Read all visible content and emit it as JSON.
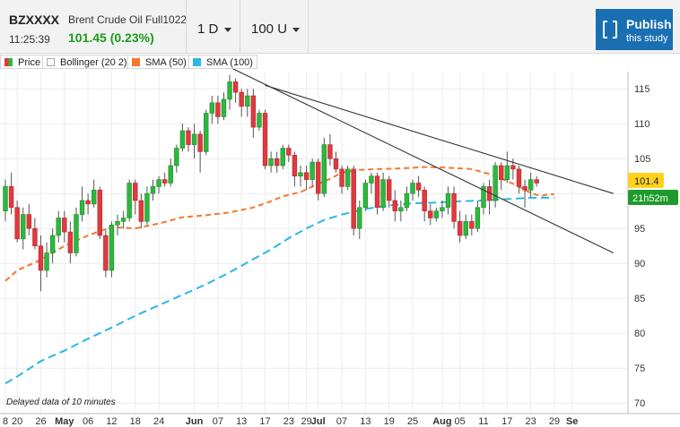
{
  "header": {
    "symbol": "BZXXXX",
    "name": "Brent Crude Oil Full1022",
    "time": "11:25:39",
    "price": "101.45 (0.23%)",
    "period": "1 D",
    "units": "100 U",
    "publish_label": "Publish",
    "publish_sub": "this study"
  },
  "legend": {
    "items": [
      {
        "label": "Price",
        "color": "#e0393e"
      },
      {
        "label": "Bollinger (20 2)",
        "color": "#ffffff"
      },
      {
        "label": "SMA (50)",
        "color": "#f2782e"
      },
      {
        "label": "SMA (100)",
        "color": "#2bb7e6"
      }
    ]
  },
  "note": "Delayed data of 10 minutes",
  "price_badge": "101.4",
  "countdown_badge": "21h52m",
  "colors": {
    "up": "#2db83d",
    "down": "#e0393e",
    "sma50": "#f2782e",
    "sma100": "#2bb7e6",
    "publish": "#1a6fb3"
  },
  "chart_data": {
    "type": "candlestick",
    "ylim": [
      68,
      119
    ],
    "y_ticks": [
      70,
      75,
      80,
      85,
      90,
      95,
      100,
      105,
      110,
      115
    ],
    "x_ticks": [
      {
        "i": 0,
        "label": "8"
      },
      {
        "i": 2,
        "label": "20"
      },
      {
        "i": 6,
        "label": "26"
      },
      {
        "i": 10,
        "label": "May"
      },
      {
        "i": 14,
        "label": "06"
      },
      {
        "i": 18,
        "label": "12"
      },
      {
        "i": 22,
        "label": "18"
      },
      {
        "i": 26,
        "label": "24"
      },
      {
        "i": 32,
        "label": "Jun"
      },
      {
        "i": 36,
        "label": "07"
      },
      {
        "i": 40,
        "label": "13"
      },
      {
        "i": 44,
        "label": "17"
      },
      {
        "i": 48,
        "label": "23"
      },
      {
        "i": 51,
        "label": "29"
      },
      {
        "i": 53,
        "label": "Jul"
      },
      {
        "i": 57,
        "label": "07"
      },
      {
        "i": 61,
        "label": "13"
      },
      {
        "i": 65,
        "label": "19"
      },
      {
        "i": 69,
        "label": "25"
      },
      {
        "i": 74,
        "label": "Aug"
      },
      {
        "i": 77,
        "label": "05"
      },
      {
        "i": 81,
        "label": "11"
      },
      {
        "i": 85,
        "label": "17"
      },
      {
        "i": 89,
        "label": "23"
      },
      {
        "i": 93,
        "label": "29"
      },
      {
        "i": 96,
        "label": "Se"
      }
    ],
    "candles": [
      [
        97.5,
        101.0,
        96.0,
        102.0
      ],
      [
        101.0,
        98.0,
        97.0,
        103.0
      ],
      [
        98.0,
        93.5,
        93.0,
        99.0
      ],
      [
        93.5,
        97.0,
        92.0,
        98.0
      ],
      [
        97.0,
        95.0,
        94.0,
        98.5
      ],
      [
        95.0,
        92.5,
        92.0,
        96.5
      ],
      [
        92.5,
        89.0,
        86.0,
        94.0
      ],
      [
        89.0,
        91.5,
        88.0,
        93.0
      ],
      [
        91.5,
        94.0,
        90.0,
        95.0
      ],
      [
        94.0,
        96.5,
        93.0,
        97.5
      ],
      [
        96.5,
        94.5,
        93.0,
        97.5
      ],
      [
        94.5,
        91.5,
        90.0,
        96.0
      ],
      [
        91.5,
        97.0,
        91.0,
        98.0
      ],
      [
        97.0,
        99.0,
        96.0,
        101.0
      ],
      [
        99.0,
        98.5,
        97.0,
        100.0
      ],
      [
        98.5,
        100.5,
        98.0,
        102.0
      ],
      [
        100.5,
        94.0,
        93.5,
        101.0
      ],
      [
        94.0,
        89.0,
        88.0,
        95.0
      ],
      [
        89.0,
        95.5,
        88.0,
        96.0
      ],
      [
        95.5,
        96.0,
        94.0,
        97.0
      ],
      [
        96.0,
        96.5,
        95.0,
        97.5
      ],
      [
        96.5,
        101.5,
        96.0,
        102.0
      ],
      [
        101.5,
        99.0,
        97.0,
        102.0
      ],
      [
        99.0,
        96.0,
        95.0,
        100.0
      ],
      [
        96.0,
        100.0,
        95.5,
        101.0
      ],
      [
        100.0,
        101.0,
        99.0,
        102.0
      ],
      [
        101.0,
        102.0,
        100.0,
        102.5
      ],
      [
        102.0,
        101.5,
        101.0,
        103.0
      ],
      [
        101.5,
        104.0,
        101.0,
        105.0
      ],
      [
        104.0,
        106.5,
        103.0,
        107.0
      ],
      [
        106.5,
        109.0,
        106.0,
        110.0
      ],
      [
        109.0,
        107.0,
        106.0,
        109.5
      ],
      [
        107.0,
        108.5,
        105.0,
        110.0
      ],
      [
        108.5,
        106.0,
        103.0,
        109.0
      ],
      [
        106.0,
        111.5,
        105.5,
        112.0
      ],
      [
        111.5,
        113.0,
        110.0,
        114.0
      ],
      [
        113.0,
        111.0,
        110.0,
        114.0
      ],
      [
        111.0,
        113.5,
        110.5,
        114.5
      ],
      [
        113.5,
        116.0,
        112.0,
        117.0
      ],
      [
        116.0,
        114.5,
        113.0,
        116.5
      ],
      [
        114.5,
        112.5,
        111.0,
        115.0
      ],
      [
        112.5,
        114.0,
        111.0,
        115.0
      ],
      [
        114.0,
        109.5,
        108.0,
        115.0
      ],
      [
        109.5,
        111.5,
        109.0,
        112.0
      ],
      [
        111.5,
        104.0,
        103.5,
        112.0
      ],
      [
        104.0,
        105.0,
        103.0,
        106.0
      ],
      [
        105.0,
        104.0,
        103.0,
        106.0
      ],
      [
        104.0,
        106.5,
        103.5,
        107.0
      ],
      [
        106.5,
        105.5,
        104.5,
        107.0
      ],
      [
        105.5,
        102.5,
        101.0,
        106.0
      ],
      [
        102.5,
        103.0,
        101.0,
        104.0
      ],
      [
        103.0,
        102.0,
        100.5,
        104.0
      ],
      [
        102.0,
        104.5,
        101.0,
        105.0
      ],
      [
        104.5,
        100.0,
        99.0,
        105.0
      ],
      [
        100.0,
        107.0,
        99.5,
        108.0
      ],
      [
        107.0,
        105.0,
        104.0,
        108.5
      ],
      [
        105.0,
        103.5,
        103.0,
        106.0
      ],
      [
        103.5,
        101.0,
        100.0,
        104.0
      ],
      [
        101.0,
        103.5,
        100.5,
        104.0
      ],
      [
        103.5,
        95.0,
        94.0,
        104.0
      ],
      [
        95.0,
        98.0,
        93.5,
        99.0
      ],
      [
        98.0,
        101.5,
        97.5,
        102.0
      ],
      [
        101.5,
        102.5,
        100.0,
        103.0
      ],
      [
        102.5,
        98.0,
        97.0,
        103.0
      ],
      [
        98.0,
        102.0,
        97.5,
        103.0
      ],
      [
        102.0,
        99.0,
        98.0,
        102.5
      ],
      [
        99.0,
        97.5,
        96.0,
        100.5
      ],
      [
        97.5,
        98.0,
        96.0,
        99.0
      ],
      [
        98.0,
        100.0,
        97.5,
        101.0
      ],
      [
        100.0,
        101.5,
        99.0,
        102.0
      ],
      [
        101.5,
        100.5,
        99.5,
        102.5
      ],
      [
        100.5,
        97.5,
        96.0,
        101.0
      ],
      [
        97.5,
        96.5,
        95.5,
        98.5
      ],
      [
        96.5,
        97.5,
        96.0,
        98.0
      ],
      [
        97.5,
        98.0,
        96.5,
        99.0
      ],
      [
        98.0,
        100.0,
        97.0,
        101.0
      ],
      [
        100.0,
        96.0,
        95.0,
        101.0
      ],
      [
        96.0,
        94.0,
        93.0,
        97.5
      ],
      [
        94.0,
        96.0,
        93.5,
        97.0
      ],
      [
        96.0,
        95.0,
        94.0,
        97.0
      ],
      [
        95.0,
        98.0,
        94.5,
        99.0
      ],
      [
        98.0,
        101.0,
        97.0,
        101.5
      ],
      [
        101.0,
        99.0,
        97.0,
        102.0
      ],
      [
        99.0,
        104.0,
        98.0,
        104.5
      ],
      [
        104.0,
        102.0,
        100.5,
        104.5
      ],
      [
        102.0,
        104.0,
        101.5,
        106.0
      ],
      [
        104.0,
        103.5,
        102.0,
        105.0
      ],
      [
        103.5,
        101.0,
        100.0,
        104.0
      ],
      [
        101.0,
        100.5,
        98.0,
        102.0
      ],
      [
        100.5,
        102.0,
        99.5,
        103.0
      ],
      [
        102.0,
        101.5,
        101.0,
        102.5
      ]
    ],
    "sma50": [
      [
        0,
        87.5
      ],
      [
        2,
        89.0
      ],
      [
        6,
        90.5
      ],
      [
        10,
        92.5
      ],
      [
        14,
        94.0
      ],
      [
        18,
        95.2
      ],
      [
        22,
        95.0
      ],
      [
        26,
        95.7
      ],
      [
        30,
        96.6
      ],
      [
        34,
        96.9
      ],
      [
        38,
        97.3
      ],
      [
        42,
        98.0
      ],
      [
        45,
        98.9
      ],
      [
        47,
        99.6
      ],
      [
        50,
        100.2
      ],
      [
        52,
        101.0
      ],
      [
        55,
        102.1
      ],
      [
        57,
        103.0
      ],
      [
        60,
        103.4
      ],
      [
        63,
        103.5
      ],
      [
        67,
        103.6
      ],
      [
        71,
        103.8
      ],
      [
        75,
        103.7
      ],
      [
        79,
        103.5
      ],
      [
        82,
        102.8
      ],
      [
        85,
        101.8
      ],
      [
        87,
        101.0
      ],
      [
        88,
        100.5
      ],
      [
        89,
        100.1
      ],
      [
        90,
        99.8
      ],
      [
        91,
        99.7
      ],
      [
        92,
        99.9
      ],
      [
        93,
        99.9
      ]
    ],
    "sma100": [
      [
        0,
        72.8
      ],
      [
        2,
        73.8
      ],
      [
        6,
        76.0
      ],
      [
        10,
        77.5
      ],
      [
        14,
        79.2
      ],
      [
        18,
        80.8
      ],
      [
        22,
        82.5
      ],
      [
        26,
        84.0
      ],
      [
        30,
        85.5
      ],
      [
        34,
        87.0
      ],
      [
        38,
        88.7
      ],
      [
        42,
        90.6
      ],
      [
        45,
        92.0
      ],
      [
        48,
        93.6
      ],
      [
        51,
        95.0
      ],
      [
        54,
        96.2
      ],
      [
        57,
        97.0
      ],
      [
        61,
        97.8
      ],
      [
        65,
        98.3
      ],
      [
        69,
        98.6
      ],
      [
        73,
        98.7
      ],
      [
        77,
        98.9
      ],
      [
        81,
        99.0
      ],
      [
        85,
        99.2
      ],
      [
        89,
        99.4
      ],
      [
        93,
        99.4
      ]
    ],
    "trendlines": [
      {
        "from": [
          44,
          115.5
        ],
        "to": [
          103,
          100.0
        ]
      },
      {
        "from": [
          37,
          118.5
        ],
        "to": [
          103,
          91.5
        ]
      }
    ]
  }
}
